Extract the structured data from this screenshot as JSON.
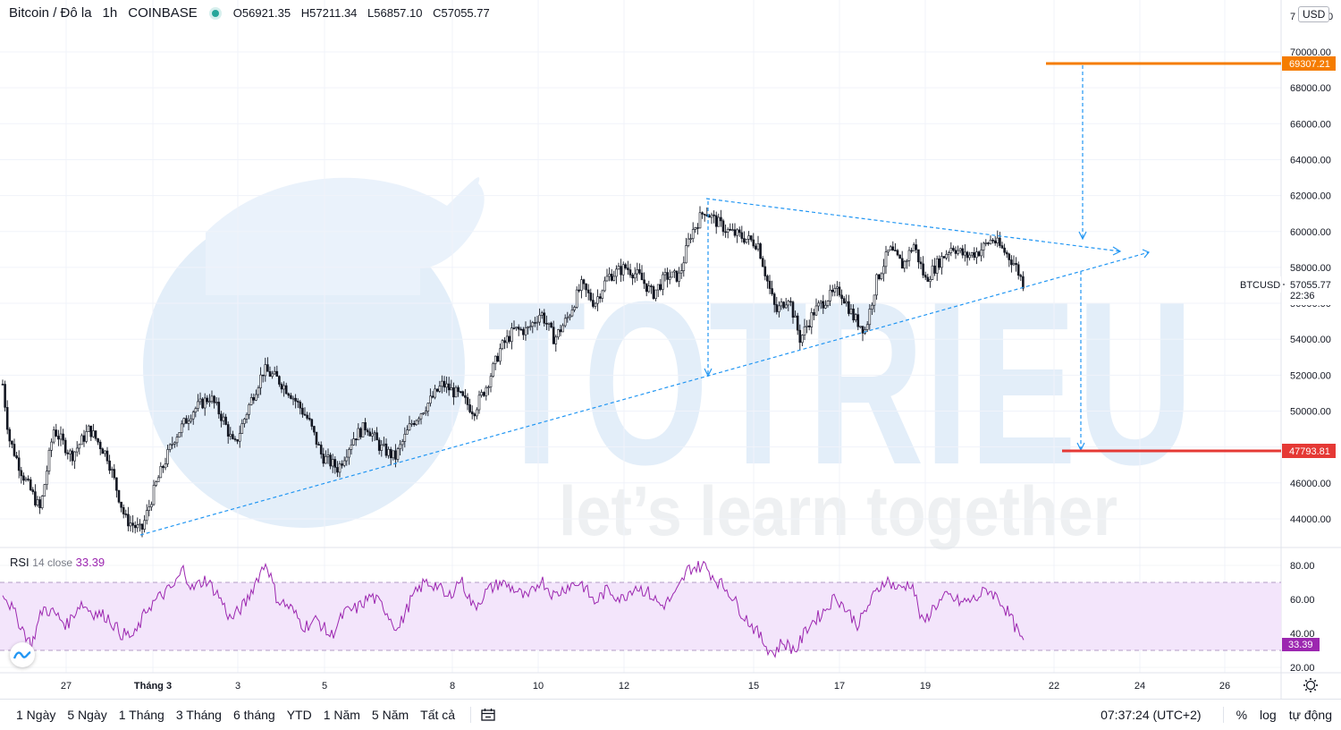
{
  "header": {
    "symbol": "Bitcoin / Đô la",
    "interval": "1h",
    "exchange": "COINBASE",
    "open_label": "O",
    "open": "56921.35",
    "high_label": "H",
    "high": "57211.34",
    "low_label": "L",
    "low": "56857.10",
    "close_label": "C",
    "close": "57055.77"
  },
  "currency": "USD",
  "price_axis_ticks": [
    "70000.00",
    "68000.00",
    "66000.00",
    "64000.00",
    "62000.00",
    "60000.00",
    "58000.00",
    "56000.00",
    "54000.00",
    "52000.00",
    "50000.00",
    "48000.00",
    "46000.00",
    "44000.00"
  ],
  "price_axis_top_partial": "7",
  "price_axis_top_partial_right": "0",
  "price_tags": {
    "target_up": "69307.21",
    "target_down": "47793.81",
    "symbol_label": "BTCUSD",
    "last_price": "57055.77",
    "countdown": "22:36"
  },
  "rsi": {
    "title": "RSI",
    "params": "14 close",
    "value": "33.39",
    "ticks": [
      "80.00",
      "60.00",
      "40.00",
      "20.00"
    ]
  },
  "time_axis": [
    "27",
    "Tháng 3",
    "3",
    "5",
    "8",
    "10",
    "12",
    "15",
    "17",
    "19",
    "22",
    "24",
    "26"
  ],
  "watermark": {
    "brand": "TOTRIEU",
    "slogan": "let’s learn together"
  },
  "bottom_bar": {
    "ranges": [
      "1 Ngày",
      "5 Ngày",
      "1 Tháng",
      "3 Tháng",
      "6 tháng",
      "YTD",
      "1 Năm",
      "5 Năm",
      "Tất cả"
    ],
    "clock": "07:37:24 (UTC+2)",
    "percent": "%",
    "log": "log",
    "auto": "tự động"
  },
  "colors": {
    "candle": "#131722",
    "trendline": "#2196f3",
    "target_up": "#f57c00",
    "target_down": "#e53935",
    "rsi_line": "#9c27b0",
    "rsi_band": "#f3e5fb",
    "watermark": "#e3eef9"
  },
  "chart_data": [
    {
      "type": "candlestick",
      "symbol": "BTCUSD",
      "interval": "1h",
      "x_ticks": [
        "27",
        "Tháng 3",
        "3",
        "5",
        "8",
        "10",
        "12",
        "15",
        "17",
        "19",
        "22",
        "24",
        "26"
      ],
      "ylim": [
        43000,
        71000
      ],
      "close_path_approx": [
        {
          "x": "26",
          "y": 51500
        },
        {
          "x": "27",
          "y": 46500
        },
        {
          "x": "28",
          "y": 47500
        },
        {
          "x": "Tháng 3",
          "y": 43500
        },
        {
          "x": "2",
          "y": 49000
        },
        {
          "x": "3",
          "y": 50500
        },
        {
          "x": "3.5",
          "y": 52500
        },
        {
          "x": "4",
          "y": 50000
        },
        {
          "x": "5",
          "y": 47000
        },
        {
          "x": "6",
          "y": 48000
        },
        {
          "x": "7",
          "y": 47200
        },
        {
          "x": "8",
          "y": 50500
        },
        {
          "x": "9",
          "y": 52000
        },
        {
          "x": "10",
          "y": 55000
        },
        {
          "x": "10.5",
          "y": 54000
        },
        {
          "x": "11",
          "y": 56500
        },
        {
          "x": "12",
          "y": 57500
        },
        {
          "x": "13",
          "y": 57000
        },
        {
          "x": "14",
          "y": 61500
        },
        {
          "x": "14.5",
          "y": 60000
        },
        {
          "x": "15",
          "y": 59800
        },
        {
          "x": "15.5",
          "y": 56000
        },
        {
          "x": "16",
          "y": 54500
        },
        {
          "x": "17",
          "y": 56500
        },
        {
          "x": "17.5",
          "y": 54500
        },
        {
          "x": "18",
          "y": 58500
        },
        {
          "x": "19",
          "y": 58200
        },
        {
          "x": "19.5",
          "y": 58800
        },
        {
          "x": "20",
          "y": 59300
        },
        {
          "x": "20.5",
          "y": 59200
        },
        {
          "x": "21",
          "y": 57055.77
        }
      ],
      "annotations": {
        "target_up": 69307.21,
        "target_down": 47793.81,
        "last_price": 57055.77
      }
    },
    {
      "type": "line",
      "name": "RSI",
      "ylim": [
        15,
        88
      ],
      "bands": [
        30,
        70
      ],
      "last_value": 33.39,
      "values_approx": [
        50,
        38,
        33,
        47,
        52,
        50,
        41,
        35,
        52,
        62,
        72,
        76,
        68,
        60,
        72,
        79,
        60,
        50,
        44,
        55,
        62,
        48,
        39,
        36,
        50,
        65,
        70,
        68,
        55,
        60,
        72,
        76,
        62,
        55,
        63,
        74,
        72,
        60,
        52,
        62,
        66,
        64,
        70,
        72,
        66,
        58,
        62,
        80,
        78,
        66,
        55,
        48,
        40,
        35,
        28,
        22,
        38,
        45,
        48,
        55,
        60,
        58,
        44,
        56,
        68,
        72,
        70,
        63,
        55,
        54,
        58,
        62,
        60,
        66,
        64,
        58,
        54,
        33.39
      ]
    }
  ]
}
